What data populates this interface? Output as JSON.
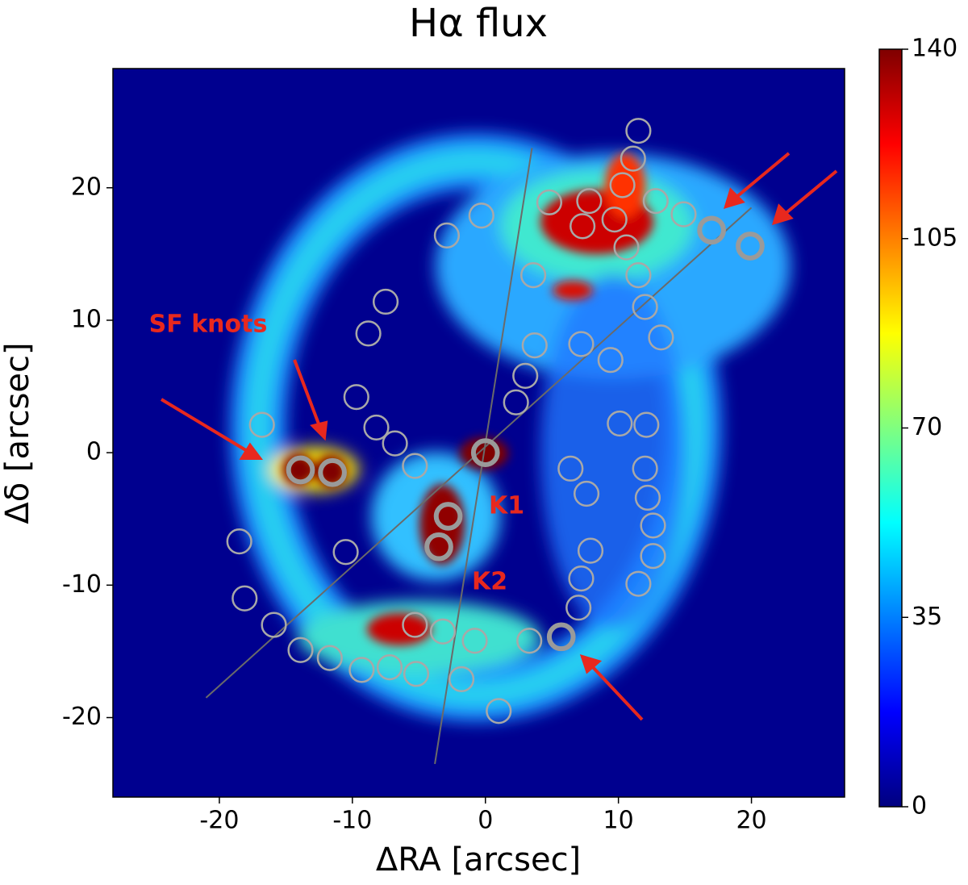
{
  "chart_data": {
    "type": "image",
    "title": "Hα flux",
    "xlabel": "ΔRA [arcsec]",
    "ylabel": "Δδ [arcsec]",
    "xlim": [
      -28,
      27
    ],
    "ylim": [
      -26,
      29
    ],
    "xticks": [
      -20,
      -10,
      0,
      10,
      20
    ],
    "yticks": [
      -20,
      -10,
      0,
      10,
      20
    ],
    "colormap": "jet",
    "clim": [
      0,
      140
    ],
    "cticks": [
      0,
      35,
      70,
      105,
      140
    ],
    "annotations": [
      "SF knots",
      "K1",
      "K2"
    ],
    "lines": [
      {
        "x": [
          -21,
          20
        ],
        "y": [
          -18.5,
          18.5
        ]
      },
      {
        "x": [
          -3.8,
          3.5
        ],
        "y": [
          -23.5,
          23
        ]
      }
    ],
    "aperture_radius": 0.9,
    "apertures": {
      "x": [
        11.5,
        11.1,
        10.3,
        12.8,
        4.8,
        7.8,
        9.7,
        7.3,
        10.6,
        14.9,
        -0.3,
        -2.9,
        3.6,
        11.5,
        12.0,
        13.2,
        -7.5,
        -8.8,
        3.7,
        7.2,
        9.4,
        3.0,
        -9.7,
        2.3,
        10.1,
        12.1,
        -16.8,
        -8.2,
        -6.8,
        -5.3,
        6.4,
        12.0,
        7.6,
        12.2,
        12.6,
        12.6,
        -10.5,
        7.9,
        -18.5,
        7.2,
        11.5,
        7.0,
        -18.1,
        -15.9,
        -5.3,
        -3.2,
        -0.8,
        3.3,
        -13.9,
        -11.7,
        -9.3,
        -7.2,
        -5.2,
        -1.8,
        1.0
      ],
      "y": [
        24.3,
        22.2,
        20.2,
        19.0,
        18.9,
        19.0,
        17.6,
        17.1,
        15.5,
        18.0,
        17.9,
        16.4,
        13.4,
        13.4,
        11.0,
        8.7,
        11.4,
        9.0,
        8.1,
        8.2,
        7.0,
        5.8,
        4.2,
        3.8,
        2.2,
        2.1,
        2.1,
        1.9,
        0.7,
        -1.0,
        -1.2,
        -1.2,
        -3.1,
        -3.4,
        -5.5,
        -7.8,
        -7.5,
        -7.4,
        -6.7,
        -9.5,
        -9.9,
        -11.7,
        -11.0,
        -13.0,
        -13.0,
        -13.5,
        -14.2,
        -14.2,
        -14.9,
        -15.5,
        -16.4,
        -16.2,
        -16.7,
        -17.1,
        -19.5
      ]
    },
    "bright_apertures": {
      "x": [
        17.0,
        19.9,
        0.0,
        -13.9,
        -11.5,
        -2.8,
        -3.5,
        5.7
      ],
      "y": [
        16.8,
        15.6,
        0.0,
        -1.3,
        -1.5,
        -4.8,
        -7.1,
        -13.9
      ]
    }
  }
}
